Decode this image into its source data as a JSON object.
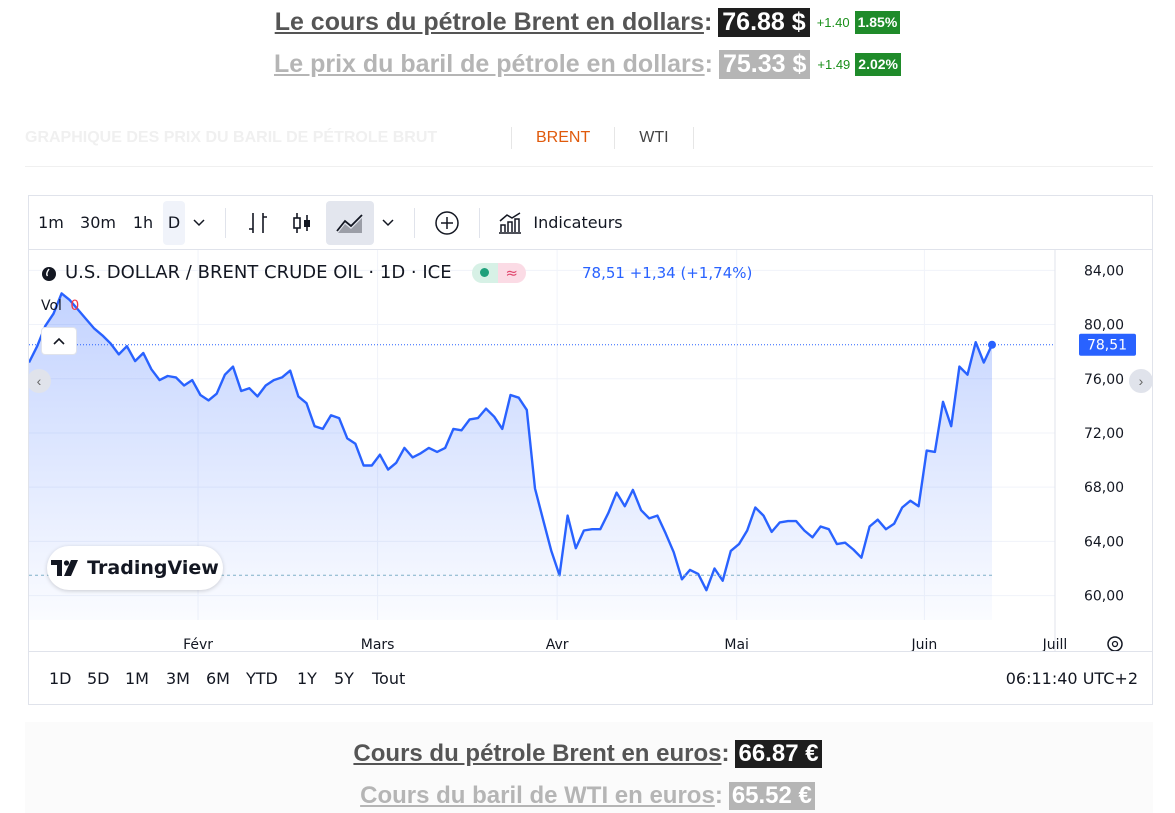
{
  "header": {
    "brent_usd": {
      "label": "Le cours du pétrole Brent en dollars",
      "colon": ":",
      "value": "76.88 $",
      "change": "+1.40",
      "pct": "1.85%"
    },
    "wti_usd": {
      "label": "Le prix du baril de pétrole en dollars",
      "colon": ":",
      "value": "75.33 $",
      "change": "+1.49",
      "pct": "2.02%"
    }
  },
  "tabs": {
    "title": "GRAPHIQUE DES PRIX DU BARIL DE PÉTROLE BRUT",
    "items": [
      {
        "label": "BRENT",
        "active": true
      },
      {
        "label": "WTI",
        "active": false
      }
    ]
  },
  "toolbar": {
    "timeframes": [
      "1m",
      "30m",
      "1h",
      "D"
    ],
    "indicators_label": "Indicateurs"
  },
  "legend": {
    "symbol": "U.S. DOLLAR / BRENT CRUDE OIL · 1D · ICE",
    "quote": "78,51  +1,34 (+1,74%)",
    "vol_label": "Vol",
    "vol_value": "0"
  },
  "logo": {
    "text": "TradingView"
  },
  "ranges": [
    "1D",
    "5D",
    "1M",
    "3M",
    "6M",
    "YTD",
    "1Y",
    "5Y",
    "Tout"
  ],
  "clock": "06:11:40 UTC+2",
  "footer": {
    "brent_eur": {
      "label": "Cours du pétrole Brent en euros",
      "colon": ":",
      "value": "66.87 €"
    },
    "wti_eur": {
      "label": "Cours du baril de WTI en euros",
      "colon": ":",
      "value": "65.52 €"
    }
  },
  "colors": {
    "line": "#2962ff",
    "positive": "#1f8b2a",
    "tab_active": "#e05a0c"
  },
  "chart_data": {
    "type": "area",
    "series_name": "",
    "y_ticks": [
      "84,00",
      "80,00",
      "76,00",
      "72,00",
      "68,00",
      "64,00",
      "60,00"
    ],
    "x_ticks": [
      "Févr",
      "Mars",
      "Avr",
      "Mai",
      "Juin",
      "Juill"
    ],
    "ylim": [
      58.2,
      85.5
    ],
    "last_value_label": "78,51",
    "last_value": 78.51,
    "reference_level": 61.5,
    "values": [
      77.2,
      78.4,
      79.9,
      80.8,
      82.3,
      81.8,
      81.1,
      80.4,
      79.7,
      79.2,
      78.6,
      77.8,
      78.4,
      77.3,
      77.9,
      76.7,
      75.9,
      76.2,
      76.1,
      75.5,
      75.9,
      74.8,
      74.4,
      74.9,
      76.3,
      76.9,
      75.1,
      75.3,
      74.7,
      75.5,
      75.9,
      76.1,
      76.6,
      74.7,
      74.2,
      72.5,
      72.3,
      73.3,
      73.1,
      71.6,
      71.2,
      69.6,
      69.6,
      70.4,
      69.3,
      69.8,
      70.9,
      70.2,
      70.5,
      70.9,
      70.6,
      70.9,
      72.3,
      72.2,
      73.0,
      73.1,
      73.8,
      73.2,
      72.3,
      74.8,
      74.6,
      73.7,
      67.9,
      65.6,
      63.3,
      61.5,
      65.9,
      63.5,
      64.8,
      64.9,
      64.9,
      66.1,
      67.6,
      66.6,
      67.8,
      66.3,
      65.7,
      65.9,
      64.6,
      63.2,
      61.2,
      61.9,
      61.6,
      60.4,
      62.0,
      61.1,
      63.3,
      63.8,
      64.8,
      66.5,
      65.9,
      64.7,
      65.4,
      65.5,
      65.5,
      64.8,
      64.3,
      65.1,
      64.9,
      63.8,
      63.9,
      63.4,
      62.8,
      65.1,
      65.6,
      64.9,
      65.3,
      66.5,
      67.0,
      66.6,
      70.7,
      70.6,
      74.3,
      72.5,
      76.9,
      76.3,
      78.7,
      77.2,
      78.51
    ]
  }
}
